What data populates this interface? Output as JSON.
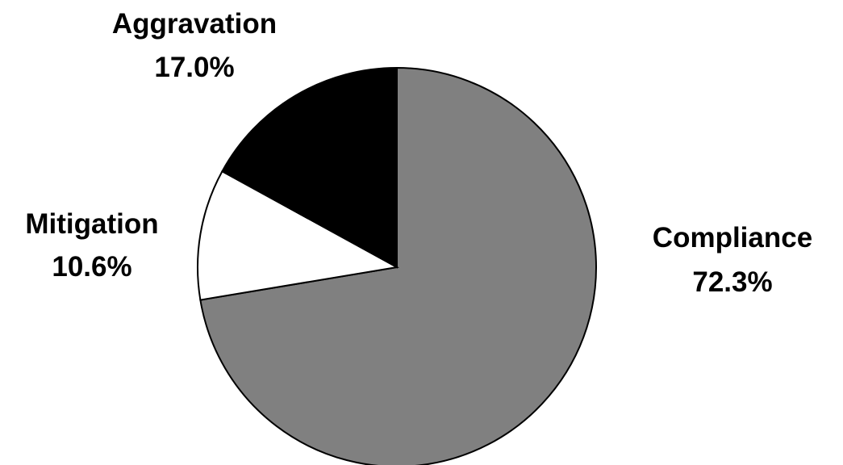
{
  "chart_data": {
    "type": "pie",
    "title": "",
    "slices": [
      {
        "name": "Compliance",
        "value": 72.3,
        "value_label": "72.3%",
        "color": "#808080"
      },
      {
        "name": "Mitigation",
        "value": 10.6,
        "value_label": "10.6%",
        "color": "#ffffff"
      },
      {
        "name": "Aggravation",
        "value": 17.0,
        "value_label": "17.0%",
        "color": "#000000"
      }
    ],
    "start_angle": "12 o'clock",
    "direction": "clockwise",
    "legend": "none",
    "edge_color": "#000000"
  }
}
